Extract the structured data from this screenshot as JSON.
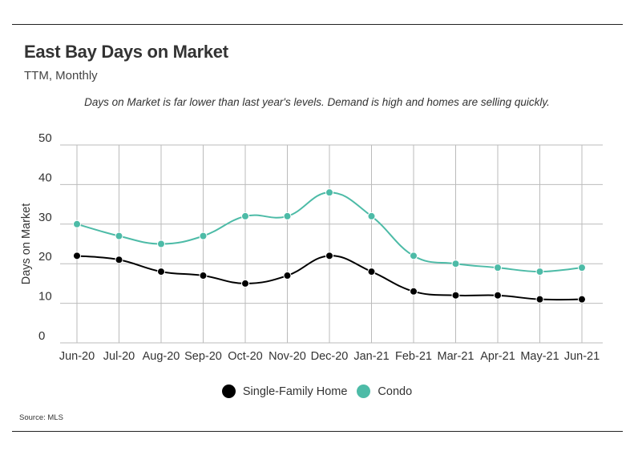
{
  "title": "East Bay Days on Market",
  "subtitle": "TTM, Monthly",
  "caption": "Days on Market is far lower than last year's levels. Demand is high and homes are selling quickly.",
  "source": "Source:  MLS",
  "colors": {
    "single_family": "#000000",
    "condo": "#4dbba7",
    "grid": "#bbbbbb",
    "text": "#333333"
  },
  "chart_data": {
    "type": "line",
    "title": "East Bay Days on Market",
    "subtitle": "TTM, Monthly",
    "xlabel": "",
    "ylabel": "Days on Market",
    "ylim": [
      0,
      50
    ],
    "yticks": [
      0,
      10,
      20,
      30,
      40,
      50
    ],
    "grid": true,
    "legend_position": "bottom",
    "categories": [
      "Jun-20",
      "Jul-20",
      "Aug-20",
      "Sep-20",
      "Oct-20",
      "Nov-20",
      "Dec-20",
      "Jan-21",
      "Feb-21",
      "Mar-21",
      "Apr-21",
      "May-21",
      "Jun-21"
    ],
    "series": [
      {
        "name": "Single-Family Home",
        "color": "#000000",
        "values": [
          22,
          21,
          18,
          17,
          15,
          17,
          22,
          18,
          13,
          12,
          12,
          11,
          11
        ]
      },
      {
        "name": "Condo",
        "color": "#4dbba7",
        "values": [
          30,
          27,
          25,
          27,
          32,
          32,
          38,
          32,
          22,
          20,
          19,
          18,
          19
        ]
      }
    ]
  }
}
